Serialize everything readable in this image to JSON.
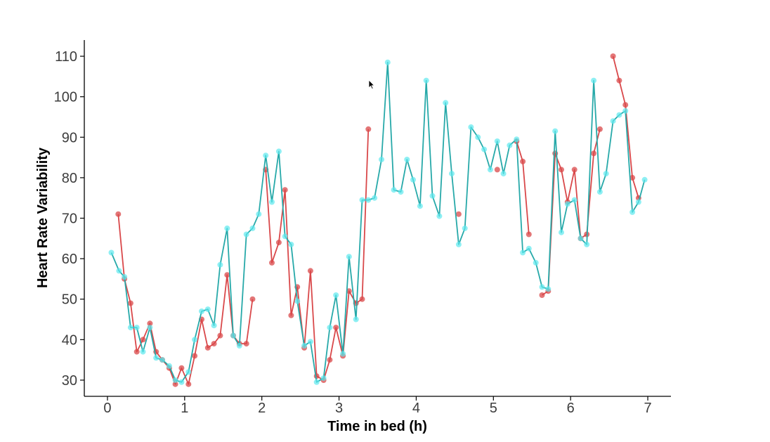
{
  "chart_data": {
    "type": "line",
    "xlabel": "Time in bed (h)",
    "ylabel": "Heart Rate Variability",
    "xlim": [
      -0.3,
      7.3
    ],
    "ylim": [
      26,
      114
    ],
    "x_ticks": [
      0,
      1,
      2,
      3,
      4,
      5,
      6,
      7
    ],
    "x_tick_labels": [
      "0",
      "1",
      "2",
      "3",
      "4",
      "5",
      "6",
      "7"
    ],
    "y_ticks": [
      30,
      40,
      50,
      60,
      70,
      80,
      90,
      100,
      110
    ],
    "y_tick_labels": [
      "30",
      "40",
      "50",
      "60",
      "70",
      "80",
      "90",
      "100",
      "110"
    ],
    "grid": false,
    "legend": "none",
    "series": [
      {
        "color": "#d9484a",
        "segments": [
          [
            [
              0.14,
              71
            ],
            [
              0.22,
              55
            ],
            [
              0.3,
              49
            ],
            [
              0.38,
              37
            ],
            [
              0.46,
              40
            ],
            [
              0.55,
              44
            ],
            [
              0.63,
              37
            ],
            [
              0.71,
              35
            ],
            [
              0.8,
              33
            ],
            [
              0.88,
              29
            ],
            [
              0.96,
              33
            ],
            [
              1.05,
              29
            ],
            [
              1.13,
              36
            ],
            [
              1.22,
              45
            ],
            [
              1.3,
              38
            ],
            [
              1.38,
              39
            ],
            [
              1.46,
              41
            ],
            [
              1.55,
              56
            ],
            [
              1.63,
              41
            ],
            [
              1.71,
              39
            ],
            [
              1.8,
              39
            ],
            [
              1.88,
              50
            ]
          ],
          [
            [
              2.05,
              82
            ],
            [
              2.13,
              59
            ],
            [
              2.22,
              64
            ],
            [
              2.3,
              77
            ],
            [
              2.38,
              46
            ],
            [
              2.46,
              53
            ],
            [
              2.55,
              38
            ],
            [
              2.63,
              57
            ],
            [
              2.71,
              31
            ],
            [
              2.8,
              30
            ],
            [
              2.88,
              35
            ],
            [
              2.96,
              43
            ],
            [
              3.05,
              36
            ],
            [
              3.13,
              52
            ],
            [
              3.22,
              49
            ],
            [
              3.3,
              50
            ],
            [
              3.38,
              92
            ]
          ],
          [
            [
              4.55,
              71
            ]
          ],
          [
            [
              5.05,
              82
            ]
          ],
          [
            [
              5.3,
              89
            ],
            [
              5.38,
              84
            ],
            [
              5.46,
              66
            ]
          ],
          [
            [
              5.63,
              51
            ],
            [
              5.71,
              52
            ],
            [
              5.8,
              86
            ],
            [
              5.88,
              82
            ],
            [
              5.96,
              74
            ],
            [
              6.05,
              82
            ],
            [
              6.13,
              65
            ],
            [
              6.21,
              66
            ],
            [
              6.3,
              86
            ],
            [
              6.38,
              92
            ]
          ],
          [
            [
              6.55,
              110
            ],
            [
              6.63,
              104
            ],
            [
              6.71,
              98
            ],
            [
              6.8,
              80
            ],
            [
              6.88,
              75
            ]
          ]
        ]
      },
      {
        "color": "#27a9a9",
        "point_color": "#5ee8ee",
        "segments": [
          [
            [
              0.05,
              61.5
            ],
            [
              0.15,
              57
            ],
            [
              0.22,
              55.5
            ],
            [
              0.3,
              43
            ],
            [
              0.38,
              43
            ],
            [
              0.46,
              37
            ],
            [
              0.55,
              43
            ],
            [
              0.63,
              35.5
            ],
            [
              0.71,
              35
            ],
            [
              0.8,
              33.5
            ],
            [
              0.88,
              30
            ],
            [
              0.96,
              29.5
            ],
            [
              1.05,
              32
            ],
            [
              1.13,
              40
            ],
            [
              1.22,
              47
            ],
            [
              1.3,
              47.5
            ],
            [
              1.38,
              43.5
            ],
            [
              1.46,
              58.5
            ],
            [
              1.55,
              67.5
            ],
            [
              1.63,
              41
            ],
            [
              1.71,
              38.5
            ],
            [
              1.8,
              66
            ],
            [
              1.88,
              67.5
            ],
            [
              1.96,
              71
            ],
            [
              2.05,
              85.5
            ],
            [
              2.13,
              74
            ],
            [
              2.22,
              86.5
            ],
            [
              2.3,
              65.5
            ],
            [
              2.38,
              63.5
            ],
            [
              2.46,
              49.5
            ],
            [
              2.55,
              38.5
            ],
            [
              2.63,
              39.5
            ],
            [
              2.71,
              29.5
            ],
            [
              2.8,
              30.5
            ],
            [
              2.88,
              43
            ],
            [
              2.96,
              51
            ],
            [
              3.05,
              36.5
            ],
            [
              3.13,
              60.5
            ],
            [
              3.22,
              45
            ],
            [
              3.3,
              74.5
            ],
            [
              3.38,
              74.5
            ],
            [
              3.46,
              75
            ],
            [
              3.55,
              84.5
            ],
            [
              3.63,
              108.5
            ],
            [
              3.71,
              77
            ],
            [
              3.8,
              76.5
            ],
            [
              3.88,
              84.5
            ],
            [
              3.96,
              79.5
            ],
            [
              4.05,
              73
            ],
            [
              4.13,
              104
            ],
            [
              4.21,
              75.5
            ],
            [
              4.3,
              70.5
            ],
            [
              4.38,
              98.5
            ],
            [
              4.46,
              81
            ],
            [
              4.55,
              63.5
            ],
            [
              4.63,
              67.5
            ],
            [
              4.71,
              92.5
            ],
            [
              4.8,
              90
            ],
            [
              4.88,
              87
            ],
            [
              4.96,
              82
            ],
            [
              5.05,
              89
            ],
            [
              5.13,
              81
            ],
            [
              5.21,
              88
            ],
            [
              5.3,
              89.5
            ],
            [
              5.38,
              61.5
            ],
            [
              5.46,
              62.5
            ],
            [
              5.55,
              59
            ],
            [
              5.63,
              53
            ],
            [
              5.71,
              52.5
            ],
            [
              5.8,
              91.5
            ],
            [
              5.88,
              66.5
            ],
            [
              5.96,
              73.5
            ],
            [
              6.05,
              74.5
            ],
            [
              6.13,
              65
            ],
            [
              6.21,
              63.5
            ],
            [
              6.3,
              104
            ],
            [
              6.38,
              76.5
            ],
            [
              6.46,
              81
            ],
            [
              6.55,
              94
            ],
            [
              6.63,
              95.5
            ],
            [
              6.71,
              96.5
            ],
            [
              6.8,
              71.5
            ],
            [
              6.88,
              74
            ],
            [
              6.96,
              79.5
            ]
          ]
        ]
      }
    ]
  }
}
